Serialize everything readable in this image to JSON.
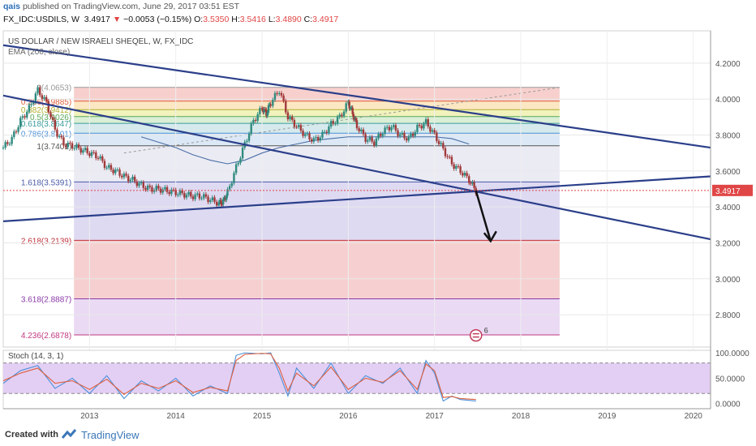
{
  "header": {
    "author": "qais",
    "published": "published on TradingView.com, June 29, 2017 03:51 EST",
    "symbol": "FX_IDC:USDILS, W",
    "last": "3.4917",
    "change_arrow": "▼",
    "change": "−0.0053 (−0.15%)",
    "o_label": "O:",
    "o_val": "3.5350",
    "h_label": "H:",
    "h_val": "3.5416",
    "l_label": "L:",
    "l_val": "3.4890",
    "c_label": "C:",
    "c_val": "3.4917"
  },
  "legend": {
    "pair": "US DOLLAR / NEW ISRAELI SHEQEL, W, FX_IDC",
    "ema": "EMA (200, close)",
    "stoch": "Stoch (14, 3, 1)"
  },
  "colors": {
    "up": "#2f8a7e",
    "down": "#a13a3a",
    "trendline": "#2b3f8a",
    "ema": "#4a6fa5",
    "k_line": "#4a90d9",
    "d_line": "#e0603e",
    "last_price": "#e04646"
  },
  "footer": {
    "created_with": "Created with",
    "brand": "TradingView"
  },
  "chart_data": [
    {
      "type": "line",
      "panel": "price",
      "title": "US DOLLAR / NEW ISRAELI SHEQEL, W, FX_IDC",
      "x_ticks": [
        "2013",
        "2014",
        "2015",
        "2016",
        "2017",
        "2018",
        "2019",
        "2020"
      ],
      "y_ticks": [
        "4.2000",
        "4.0000",
        "3.8000",
        "3.6000",
        "3.4000",
        "3.2000",
        "3.0000",
        "2.8000"
      ],
      "ylim": [
        2.62,
        4.38
      ],
      "last_price_label": "3.4917",
      "series": [
        {
          "name": "",
          "x": [
            2012.0,
            2012.1,
            2012.2,
            2012.3,
            2012.4,
            2012.5,
            2012.6,
            2012.7,
            2012.8,
            2012.9,
            2013.0,
            2013.1,
            2013.2,
            2013.3,
            2013.4,
            2013.5,
            2013.6,
            2013.7,
            2013.8,
            2013.9,
            2014.0,
            2014.1,
            2014.2,
            2014.3,
            2014.4,
            2014.5,
            2014.55,
            2014.6,
            2014.7,
            2014.8,
            2014.9,
            2015.0,
            2015.05,
            2015.1,
            2015.2,
            2015.3,
            2015.4,
            2015.5,
            2015.6,
            2015.7,
            2015.8,
            2015.9,
            2016.0,
            2016.05,
            2016.1,
            2016.2,
            2016.3,
            2016.4,
            2016.5,
            2016.6,
            2016.7,
            2016.8,
            2016.9,
            2017.0,
            2017.1,
            2017.2,
            2017.3,
            2017.4,
            2017.48
          ],
          "values": [
            3.73,
            3.78,
            3.88,
            3.95,
            4.05,
            3.98,
            3.83,
            3.75,
            3.74,
            3.72,
            3.7,
            3.68,
            3.62,
            3.6,
            3.57,
            3.55,
            3.52,
            3.5,
            3.5,
            3.49,
            3.48,
            3.47,
            3.46,
            3.46,
            3.44,
            3.42,
            3.43,
            3.48,
            3.62,
            3.75,
            3.88,
            3.95,
            3.92,
            3.98,
            4.05,
            3.9,
            3.85,
            3.8,
            3.77,
            3.8,
            3.86,
            3.9,
            3.98,
            3.92,
            3.85,
            3.78,
            3.76,
            3.82,
            3.85,
            3.8,
            3.78,
            3.84,
            3.87,
            3.8,
            3.72,
            3.64,
            3.6,
            3.55,
            3.49
          ]
        },
        {
          "name": "EMA (200, close)",
          "x": [
            2013.6,
            2013.8,
            2014.0,
            2014.2,
            2014.4,
            2014.6,
            2014.8,
            2015.0,
            2015.2,
            2015.4,
            2015.6,
            2015.8,
            2016.0,
            2016.2,
            2016.4,
            2016.6,
            2016.8,
            2017.0,
            2017.2,
            2017.4
          ],
          "values": [
            3.79,
            3.76,
            3.73,
            3.69,
            3.66,
            3.64,
            3.66,
            3.7,
            3.73,
            3.75,
            3.77,
            3.78,
            3.79,
            3.79,
            3.79,
            3.79,
            3.79,
            3.79,
            3.78,
            3.75
          ]
        }
      ],
      "fib_levels": [
        {
          "label": "0(4.0653)",
          "value": 4.0653,
          "color": "#999999"
        },
        {
          "label": "0.236(3.9885)",
          "value": 3.9885,
          "color": "#e0603e"
        },
        {
          "label": "0.382(3.9412)",
          "value": 3.9412,
          "color": "#b0b030"
        },
        {
          "label": "0.5(3.9026)",
          "value": 3.9026,
          "color": "#5aa85a"
        },
        {
          "label": "0.618(3.8647)",
          "value": 3.8647,
          "color": "#3a9a9a"
        },
        {
          "label": "0.786(3.8101)",
          "value": 3.8101,
          "color": "#4a90d9"
        },
        {
          "label": "1(3.7401)",
          "value": 3.7401,
          "color": "#555555"
        },
        {
          "label": "1.618(3.5391)",
          "value": 3.5391,
          "color": "#4a5aa8"
        },
        {
          "label": "2.618(3.2139)",
          "value": 3.2139,
          "color": "#c0303a"
        },
        {
          "label": "3.618(2.8887)",
          "value": 2.8887,
          "color": "#8a3aa8"
        },
        {
          "label": "4.236(2.6878)",
          "value": 2.6878,
          "color": "#c03a80"
        }
      ],
      "trendlines": [
        {
          "x1": 2012.0,
          "y1": 4.3,
          "x2": 2020.2,
          "y2": 3.73
        },
        {
          "x1": 2012.0,
          "y1": 4.02,
          "x2": 2020.2,
          "y2": 3.22
        },
        {
          "x1": 2012.0,
          "y1": 3.32,
          "x2": 2020.2,
          "y2": 3.57
        }
      ],
      "arrow": {
        "x1": 2017.48,
        "y1": 3.49,
        "x2": 2017.65,
        "y2": 3.21
      },
      "event_badge": "6"
    },
    {
      "type": "line",
      "panel": "oscillator",
      "title": "Stoch (14, 3, 1)",
      "y_ticks": [
        "100.0000",
        "50.0000",
        "0.0000"
      ],
      "ylim": [
        -10,
        105
      ],
      "bands": [
        80,
        20
      ],
      "series": [
        {
          "name": "",
          "x": [
            2012.0,
            2012.2,
            2012.4,
            2012.6,
            2012.8,
            2013.0,
            2013.2,
            2013.4,
            2013.6,
            2013.8,
            2014.0,
            2014.2,
            2014.4,
            2014.6,
            2014.7,
            2014.8,
            2015.0,
            2015.1,
            2015.2,
            2015.3,
            2015.4,
            2015.6,
            2015.8,
            2016.0,
            2016.2,
            2016.4,
            2016.6,
            2016.8,
            2016.9,
            2017.0,
            2017.1,
            2017.2,
            2017.3,
            2017.48
          ],
          "values": [
            40,
            65,
            75,
            30,
            50,
            20,
            55,
            10,
            45,
            25,
            50,
            15,
            35,
            20,
            95,
            100,
            98,
            100,
            60,
            15,
            70,
            30,
            80,
            20,
            55,
            40,
            70,
            20,
            85,
            60,
            5,
            15,
            8,
            5
          ]
        },
        {
          "name": "",
          "x": [
            2012.0,
            2012.2,
            2012.4,
            2012.6,
            2012.8,
            2013.0,
            2013.2,
            2013.4,
            2013.6,
            2013.8,
            2014.0,
            2014.2,
            2014.4,
            2014.6,
            2014.7,
            2014.8,
            2015.0,
            2015.1,
            2015.2,
            2015.3,
            2015.4,
            2015.6,
            2015.8,
            2016.0,
            2016.2,
            2016.4,
            2016.6,
            2016.8,
            2016.9,
            2017.0,
            2017.1,
            2017.2,
            2017.3,
            2017.48
          ],
          "values": [
            45,
            60,
            70,
            40,
            45,
            28,
            48,
            18,
            40,
            30,
            45,
            22,
            32,
            25,
            85,
            97,
            99,
            98,
            70,
            25,
            60,
            35,
            72,
            28,
            50,
            42,
            65,
            28,
            78,
            65,
            12,
            14,
            10,
            8
          ]
        }
      ]
    }
  ]
}
